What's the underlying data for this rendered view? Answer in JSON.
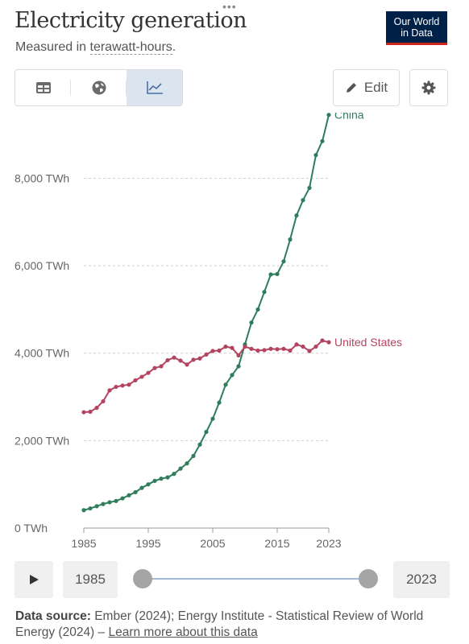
{
  "header": {
    "more_icon": "•••",
    "title": "Electricity generation",
    "subtitle_prefix": "Measured in ",
    "subtitle_unit": "terawatt-hours",
    "subtitle_suffix": ".",
    "logo_line1": "Our World",
    "logo_line2": "in Data"
  },
  "toolbar": {
    "tabs": [
      "table-icon",
      "globe-icon",
      "chart-icon"
    ],
    "active_tab": "chart-icon",
    "edit_label": "Edit"
  },
  "timeline": {
    "start_year": "1985",
    "end_year": "2023"
  },
  "footer": {
    "source_label": "Data source:",
    "source_text": " Ember (2024); Energy Institute - Statistical Review of World Energy (2024) – ",
    "learn_more": "Learn more about this data"
  },
  "colors": {
    "china": "#2e7d5b",
    "us": "#b3435f",
    "grid": "#d0d0d0",
    "axis": "#555555"
  },
  "chart_data": {
    "type": "line",
    "title": "Electricity generation",
    "subtitle": "Measured in terawatt-hours.",
    "xlabel": "",
    "ylabel": "",
    "xlim": [
      1985,
      2023
    ],
    "ylim": [
      0,
      9500
    ],
    "x_ticks": [
      1985,
      1995,
      2005,
      2015,
      2023
    ],
    "x_tick_labels": [
      "1985",
      "1995",
      "2005",
      "2015",
      "2023"
    ],
    "y_ticks": [
      0,
      2000,
      4000,
      6000,
      8000
    ],
    "y_tick_labels": [
      "0 TWh",
      "2,000 TWh",
      "4,000 TWh",
      "6,000 TWh",
      "8,000 TWh"
    ],
    "grid": true,
    "x": [
      1985,
      1986,
      1987,
      1988,
      1989,
      1990,
      1991,
      1992,
      1993,
      1994,
      1995,
      1996,
      1997,
      1998,
      1999,
      2000,
      2001,
      2002,
      2003,
      2004,
      2005,
      2006,
      2007,
      2008,
      2009,
      2010,
      2011,
      2012,
      2013,
      2014,
      2015,
      2016,
      2017,
      2018,
      2019,
      2020,
      2021,
      2022,
      2023
    ],
    "series": [
      {
        "name": "China",
        "color": "#2e7d5b",
        "values": [
          410,
          450,
          500,
          550,
          590,
          620,
          680,
          750,
          820,
          920,
          1000,
          1080,
          1130,
          1160,
          1240,
          1360,
          1480,
          1650,
          1910,
          2200,
          2500,
          2870,
          3280,
          3500,
          3700,
          4200,
          4700,
          5000,
          5400,
          5800,
          5810,
          6100,
          6600,
          7150,
          7500,
          7780,
          8530,
          8850,
          9450
        ]
      },
      {
        "name": "United States",
        "color": "#b3435f",
        "values": [
          2650,
          2660,
          2750,
          2900,
          3150,
          3230,
          3260,
          3280,
          3380,
          3460,
          3550,
          3660,
          3700,
          3840,
          3900,
          3830,
          3740,
          3850,
          3880,
          3970,
          4050,
          4060,
          4150,
          4120,
          3950,
          4150,
          4100,
          4060,
          4070,
          4100,
          4090,
          4100,
          4060,
          4200,
          4150,
          4050,
          4150,
          4290,
          4250
        ]
      }
    ],
    "legend": "inline-right"
  }
}
